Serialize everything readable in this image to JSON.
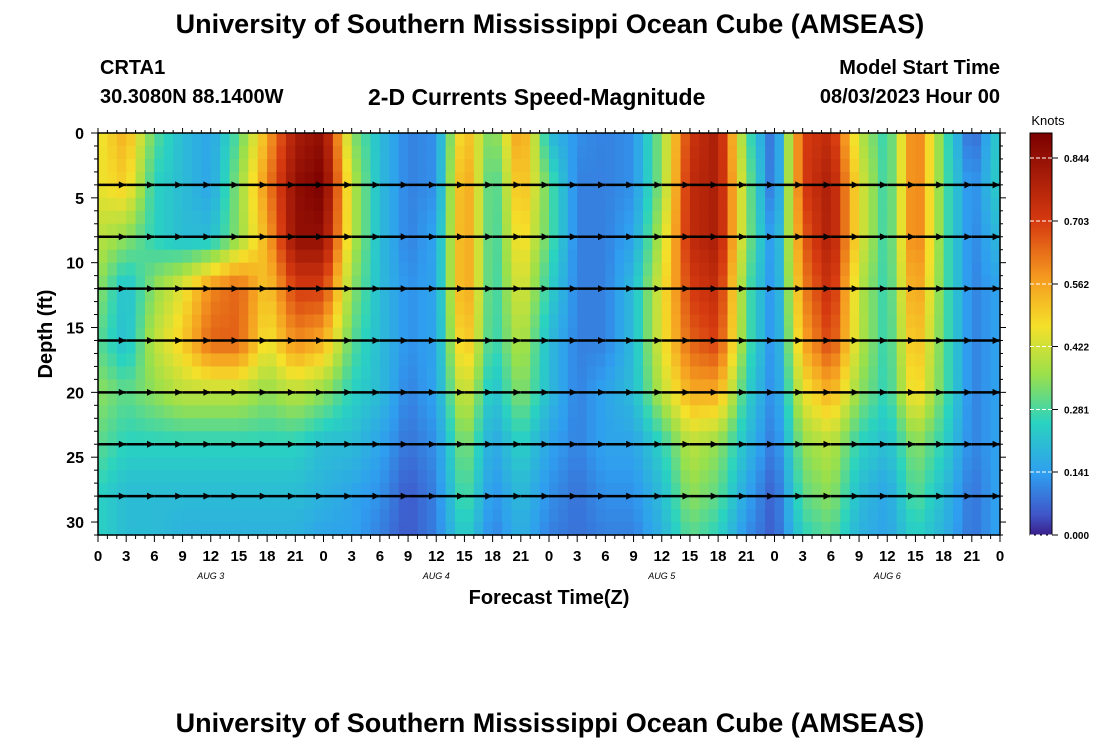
{
  "header": {
    "title": "University of Southern Mississippi Ocean Cube (AMSEAS)",
    "station": "CRTA1",
    "coords": "30.3080N  88.1400W",
    "subtitle": "2-D Currents Speed-Magnitude",
    "start_label": "Model Start Time",
    "start_value": "08/03/2023 Hour 00"
  },
  "footer": {
    "title": "University of Southern Mississippi Ocean Cube (AMSEAS)"
  },
  "chart_data": {
    "type": "heatmap",
    "title": "2-D Currents Speed-Magnitude",
    "xlabel": "Forecast Time(Z)",
    "ylabel": "Depth (ft)",
    "xlim": [
      0,
      96
    ],
    "ylim": [
      0,
      31
    ],
    "y_inverted": true,
    "x_tick_labels": [
      "0",
      "3",
      "6",
      "9",
      "12",
      "15",
      "18",
      "21",
      "0",
      "3",
      "6",
      "9",
      "12",
      "15",
      "18",
      "21",
      "0",
      "3",
      "6",
      "9",
      "12",
      "15",
      "18",
      "21",
      "0",
      "3",
      "6",
      "9",
      "12",
      "15",
      "18",
      "21",
      "0"
    ],
    "y_ticks": [
      0,
      5,
      10,
      15,
      20,
      25,
      30
    ],
    "day_labels": [
      {
        "label": "AUG 3",
        "hour": 12
      },
      {
        "label": "AUG 4",
        "hour": 36
      },
      {
        "label": "AUG 5",
        "hour": 60
      },
      {
        "label": "AUG 6",
        "hour": 84
      }
    ],
    "colorbar": {
      "title": "Knots",
      "ticks": [
        0.0,
        0.141,
        0.281,
        0.422,
        0.562,
        0.703,
        0.844
      ],
      "max": 0.9
    },
    "vector_depths": [
      4,
      8,
      12,
      16,
      20,
      24,
      28
    ],
    "vector_hours": [
      0,
      3,
      6,
      9,
      12,
      15,
      18,
      21,
      24,
      27,
      30,
      33,
      36,
      39,
      42,
      45,
      48,
      51,
      54,
      57,
      60,
      63,
      66,
      69,
      72,
      75,
      78,
      81,
      84,
      87,
      90,
      93
    ],
    "speed_grid_depths": [
      0,
      4,
      8,
      12,
      16,
      20,
      24,
      28,
      31
    ],
    "speed_grid_hours": [
      0,
      3,
      6,
      9,
      12,
      15,
      18,
      21,
      24,
      27,
      30,
      33,
      36,
      39,
      42,
      45,
      48,
      51,
      54,
      57,
      60,
      63,
      66,
      69,
      72,
      75,
      78,
      81,
      84,
      87,
      90,
      93,
      96
    ],
    "speed_grid": [
      [
        0.45,
        0.55,
        0.3,
        0.2,
        0.15,
        0.3,
        0.55,
        0.8,
        0.85,
        0.35,
        0.2,
        0.1,
        0.12,
        0.55,
        0.3,
        0.6,
        0.2,
        0.12,
        0.1,
        0.12,
        0.35,
        0.72,
        0.8,
        0.3,
        0.05,
        0.7,
        0.75,
        0.4,
        0.25,
        0.65,
        0.3,
        0.05,
        0.25
      ],
      [
        0.45,
        0.5,
        0.25,
        0.2,
        0.15,
        0.35,
        0.6,
        0.85,
        0.9,
        0.4,
        0.2,
        0.1,
        0.12,
        0.6,
        0.25,
        0.55,
        0.3,
        0.1,
        0.1,
        0.12,
        0.35,
        0.75,
        0.8,
        0.35,
        0.05,
        0.7,
        0.8,
        0.45,
        0.25,
        0.65,
        0.3,
        0.1,
        0.25
      ],
      [
        0.4,
        0.35,
        0.25,
        0.2,
        0.2,
        0.35,
        0.55,
        0.85,
        0.85,
        0.4,
        0.2,
        0.1,
        0.15,
        0.6,
        0.25,
        0.5,
        0.3,
        0.1,
        0.1,
        0.15,
        0.4,
        0.75,
        0.8,
        0.35,
        0.1,
        0.65,
        0.8,
        0.45,
        0.25,
        0.65,
        0.3,
        0.1,
        0.2
      ],
      [
        0.35,
        0.2,
        0.35,
        0.45,
        0.6,
        0.65,
        0.5,
        0.7,
        0.7,
        0.35,
        0.2,
        0.12,
        0.15,
        0.6,
        0.25,
        0.45,
        0.25,
        0.1,
        0.1,
        0.2,
        0.45,
        0.7,
        0.75,
        0.3,
        0.1,
        0.6,
        0.75,
        0.4,
        0.25,
        0.6,
        0.3,
        0.1,
        0.15
      ],
      [
        0.3,
        0.2,
        0.4,
        0.5,
        0.65,
        0.65,
        0.45,
        0.6,
        0.55,
        0.3,
        0.2,
        0.12,
        0.15,
        0.55,
        0.25,
        0.4,
        0.2,
        0.1,
        0.1,
        0.2,
        0.45,
        0.65,
        0.7,
        0.3,
        0.1,
        0.55,
        0.7,
        0.4,
        0.25,
        0.55,
        0.3,
        0.1,
        0.15
      ],
      [
        0.35,
        0.3,
        0.35,
        0.4,
        0.4,
        0.4,
        0.35,
        0.4,
        0.35,
        0.25,
        0.2,
        0.1,
        0.15,
        0.45,
        0.2,
        0.35,
        0.2,
        0.1,
        0.15,
        0.2,
        0.4,
        0.55,
        0.55,
        0.25,
        0.1,
        0.45,
        0.55,
        0.35,
        0.25,
        0.5,
        0.3,
        0.1,
        0.15
      ],
      [
        0.3,
        0.25,
        0.25,
        0.25,
        0.25,
        0.25,
        0.25,
        0.25,
        0.2,
        0.2,
        0.15,
        0.08,
        0.12,
        0.35,
        0.15,
        0.25,
        0.15,
        0.1,
        0.15,
        0.15,
        0.25,
        0.4,
        0.35,
        0.2,
        0.08,
        0.35,
        0.4,
        0.25,
        0.2,
        0.35,
        0.25,
        0.1,
        0.15
      ],
      [
        0.25,
        0.2,
        0.2,
        0.2,
        0.2,
        0.2,
        0.2,
        0.2,
        0.18,
        0.15,
        0.12,
        0.05,
        0.1,
        0.3,
        0.12,
        0.2,
        0.12,
        0.08,
        0.12,
        0.12,
        0.2,
        0.35,
        0.3,
        0.15,
        0.05,
        0.3,
        0.35,
        0.2,
        0.15,
        0.3,
        0.2,
        0.08,
        0.15
      ],
      [
        0.25,
        0.2,
        0.2,
        0.18,
        0.18,
        0.18,
        0.18,
        0.18,
        0.15,
        0.15,
        0.1,
        0.05,
        0.1,
        0.25,
        0.1,
        0.18,
        0.1,
        0.08,
        0.1,
        0.1,
        0.18,
        0.3,
        0.25,
        0.12,
        0.05,
        0.25,
        0.3,
        0.18,
        0.15,
        0.25,
        0.18,
        0.08,
        0.15
      ]
    ],
    "vector_angles_deg": [
      [
        0,
        0,
        0,
        0,
        0,
        0,
        0,
        0,
        0,
        0,
        0,
        0,
        0,
        0,
        0,
        0,
        0,
        0,
        0,
        0,
        0,
        0,
        0,
        0,
        0,
        0,
        0,
        0,
        0,
        0,
        0,
        0
      ],
      [
        0,
        0,
        0,
        0,
        0,
        0,
        0,
        0,
        0,
        0,
        0,
        0,
        0,
        0,
        0,
        0,
        0,
        0,
        0,
        0,
        0,
        0,
        0,
        0,
        0,
        0,
        0,
        0,
        0,
        0,
        0,
        0
      ],
      [
        0,
        0,
        0,
        0,
        0,
        0,
        0,
        0,
        0,
        0,
        0,
        0,
        0,
        0,
        0,
        0,
        0,
        0,
        0,
        0,
        0,
        0,
        0,
        0,
        0,
        0,
        0,
        0,
        0,
        0,
        0,
        0
      ],
      [
        0,
        0,
        0,
        0,
        0,
        0,
        0,
        0,
        0,
        0,
        0,
        0,
        0,
        0,
        0,
        0,
        0,
        0,
        0,
        0,
        0,
        0,
        0,
        0,
        0,
        0,
        0,
        0,
        0,
        0,
        0,
        0
      ],
      [
        0,
        0,
        0,
        0,
        0,
        0,
        0,
        0,
        0,
        0,
        0,
        0,
        0,
        0,
        0,
        0,
        0,
        0,
        0,
        0,
        0,
        0,
        0,
        0,
        0,
        0,
        0,
        0,
        0,
        0,
        0,
        0
      ],
      [
        0,
        0,
        0,
        0,
        0,
        0,
        0,
        0,
        0,
        0,
        0,
        0,
        0,
        0,
        0,
        0,
        0,
        0,
        0,
        0,
        0,
        0,
        0,
        0,
        0,
        0,
        0,
        0,
        0,
        0,
        0,
        0
      ],
      [
        0,
        0,
        0,
        0,
        0,
        0,
        0,
        0,
        0,
        0,
        0,
        0,
        0,
        0,
        0,
        0,
        0,
        0,
        0,
        0,
        0,
        0,
        0,
        0,
        0,
        0,
        0,
        0,
        0,
        0,
        0,
        0
      ]
    ]
  }
}
